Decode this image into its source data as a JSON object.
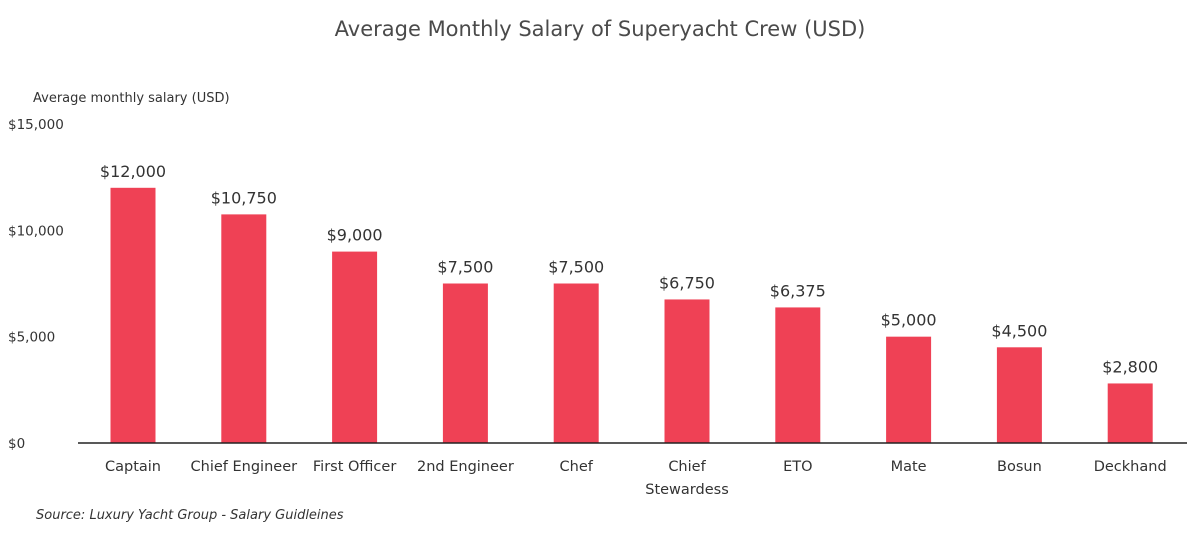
{
  "chart_data": {
    "type": "bar",
    "title": "Average Monthly Salary of Superyacht Crew (USD)",
    "ylabel": "Average monthly salary (USD)",
    "xlabel": "",
    "ylim": [
      0,
      15000
    ],
    "yticks": [
      0,
      5000,
      10000,
      15000
    ],
    "ytick_labels": [
      "$0",
      "$5,000",
      "$10,000",
      "$15,000"
    ],
    "categories": [
      "Captain",
      "Chief Engineer",
      "First Officer",
      "2nd Engineer",
      "Chef",
      "Chief Stewardess",
      "ETO",
      "Mate",
      "Bosun",
      "Deckhand"
    ],
    "category_lines": [
      [
        "Captain"
      ],
      [
        "Chief Engineer"
      ],
      [
        "First Officer"
      ],
      [
        "2nd Engineer"
      ],
      [
        "Chef"
      ],
      [
        "Chief",
        "Stewardess"
      ],
      [
        "ETO"
      ],
      [
        "Mate"
      ],
      [
        "Bosun"
      ],
      [
        "Deckhand"
      ]
    ],
    "values": [
      12000,
      10750,
      9000,
      7500,
      7500,
      6750,
      6375,
      5000,
      4500,
      2800
    ],
    "value_labels": [
      "$12,000",
      "$10,750",
      "$9,000",
      "$7,500",
      "$7,500",
      "$6,750",
      "$6,375",
      "$5,000",
      "$4,500",
      "$2,800"
    ],
    "grid": false,
    "bar_color": "#ef4155",
    "source": "Source: Luxury Yacht Group - Salary Guidleines"
  }
}
